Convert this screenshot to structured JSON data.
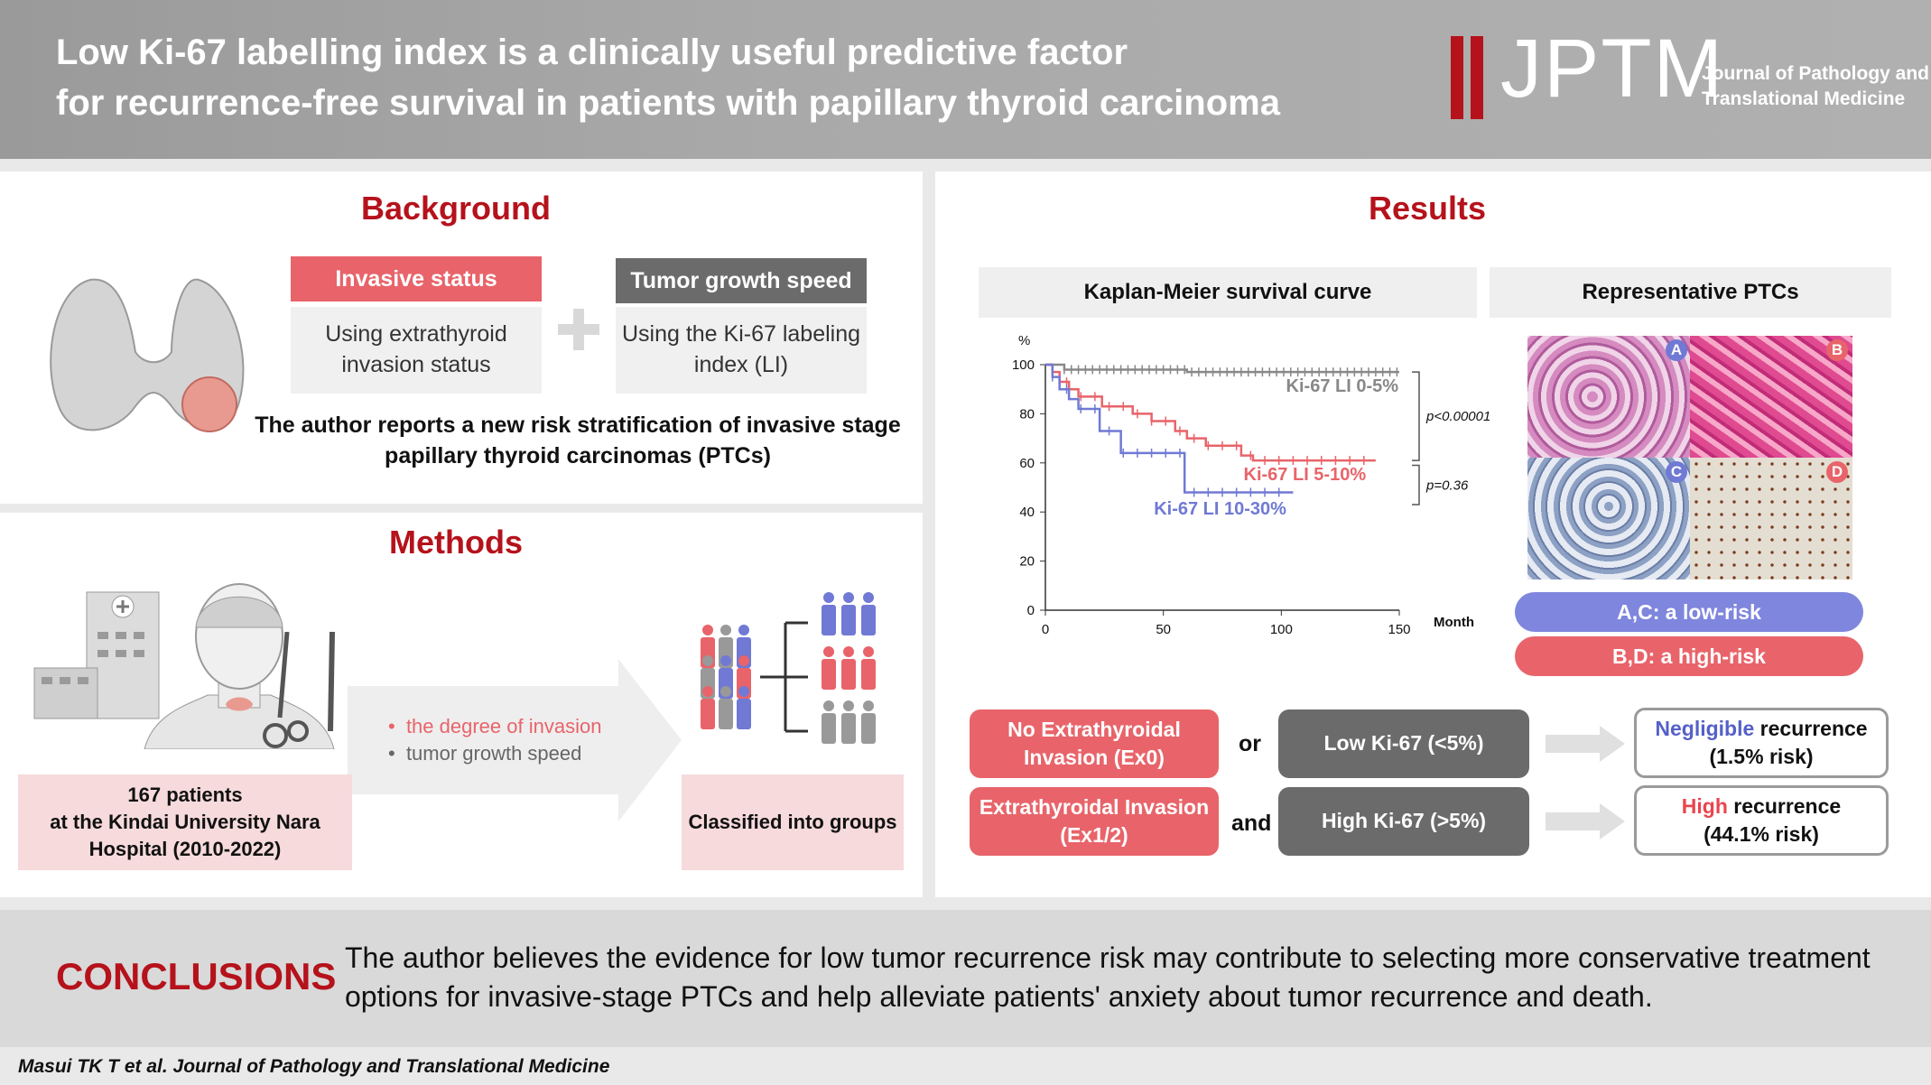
{
  "header": {
    "title_line1": "Low Ki-67 labelling index is a clinically useful predictive factor",
    "title_line2": "for recurrence-free survival in patients with papillary thyroid carcinoma",
    "logo": "JPTM",
    "logo_sub1": "Journal of Pathology and",
    "logo_sub2": "Translational Medicine"
  },
  "background": {
    "title": "Background",
    "box1_head": "Invasive status",
    "box1_body": "Using extrathyroid invasion status",
    "box2_head": "Tumor growth speed",
    "box2_body": "Using the Ki-67 labeling index (LI)",
    "statement_line1": "The author reports a new risk stratification of invasive stage",
    "statement_line2": "papillary thyroid carcinomas (PTCs)"
  },
  "methods": {
    "title": "Methods",
    "bullet1": "the degree of invasion",
    "bullet2": "tumor growth speed",
    "patients_line1": "167 patients",
    "patients_line2": "at the Kindai University Nara",
    "patients_line3": "Hospital (2010-2022)",
    "classified": "Classified into groups"
  },
  "results": {
    "title": "Results",
    "km_label": "Kaplan-Meier survival curve",
    "rep_label": "Representative PTCs",
    "pill_low": "A,C: a low-risk",
    "pill_high": "B,D: a high-risk",
    "panel_letters": [
      "A",
      "B",
      "C",
      "D"
    ]
  },
  "chart_data": {
    "type": "line",
    "title": "Kaplan-Meier survival curve",
    "xlabel": "Month",
    "ylabel": "%",
    "xlim": [
      0,
      150
    ],
    "ylim": [
      0,
      100
    ],
    "xticks": [
      0,
      50,
      100,
      150
    ],
    "yticks": [
      0,
      20,
      40,
      60,
      80,
      100
    ],
    "series": [
      {
        "name": "Ki-67 LI 0-5%",
        "color": "#888888",
        "x": [
          0,
          8,
          60,
          150
        ],
        "y": [
          100,
          98,
          97,
          97
        ]
      },
      {
        "name": "Ki-67 LI 5-10%",
        "color": "#e8646a",
        "x": [
          0,
          3,
          6,
          10,
          14,
          24,
          37,
          45,
          55,
          60,
          68,
          73,
          83,
          88,
          140
        ],
        "y": [
          100,
          97,
          93,
          90,
          87,
          83,
          80,
          77,
          73,
          70,
          67,
          67,
          63,
          61,
          61
        ]
      },
      {
        "name": "Ki-67 LI 10-30%",
        "color": "#7079d4",
        "x": [
          0,
          3,
          6,
          10,
          14,
          23,
          32,
          40,
          59,
          105
        ],
        "y": [
          100,
          95,
          90,
          86,
          82,
          73,
          64,
          64,
          48,
          48
        ]
      }
    ],
    "annotations": [
      "p<0.00001",
      "p=0.36"
    ]
  },
  "summary": {
    "left1": "No Extrathyroidal Invasion (Ex0)",
    "left2": "Extrathyroidal Invasion (Ex1/2)",
    "conj1": "or",
    "conj2": "and",
    "mid1": "Low Ki-67 (<5%)",
    "mid2": "High Ki-67 (>5%)",
    "right1_key": "Negligible",
    "right1_rest": " recurrence",
    "right1_risk": "(1.5% risk)",
    "right2_key": "High",
    "right2_rest": " recurrence",
    "right2_risk": "(44.1% risk)"
  },
  "conclusions": {
    "label": "CONCLUSIONS",
    "text": "The author believes the evidence for low tumor recurrence risk may contribute to selecting more conservative treatment options for invasive-stage PTCs and help alleviate patients' anxiety about tumor recurrence and death."
  },
  "citation": "Masui TK T et al. Journal of Pathology and Translational Medicine",
  "colors": {
    "brand_red": "#b5121b",
    "pink": "#e8646a",
    "blue": "#7079d4",
    "gray": "#707070"
  }
}
